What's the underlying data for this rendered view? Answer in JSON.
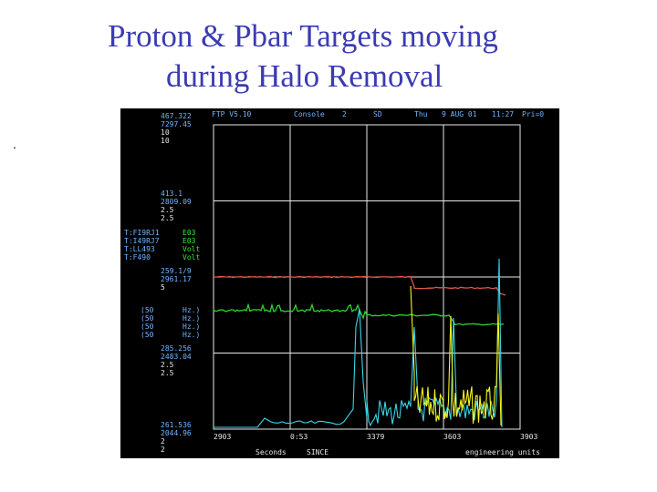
{
  "title": {
    "line1": "Proton & Pbar Targets moving",
    "line2": "during Halo Removal"
  },
  "bullet": ".",
  "scope": {
    "header": {
      "app": "FTP V5.10",
      "mode": "Console",
      "slot": "2",
      "sd": "SD",
      "day": "Thu",
      "date": "9 AUG 01",
      "time": "11:27",
      "pri": "Pri=0"
    },
    "scale_blocks": [
      {
        "top": "467.322",
        "bottom": "7297.45",
        "a": "10",
        "b": "10"
      },
      {
        "top": "413.1",
        "bottom": "2809.09",
        "a": "2.5",
        "b": "2.5"
      },
      {
        "top": "259.1/9",
        "bottom": "2961.17",
        "a": "5",
        "b": ""
      },
      {
        "top": "285.256",
        "bottom": "2483.04",
        "a": "2.5",
        "b": "2.5"
      },
      {
        "top": "261.536",
        "bottom": "2044.96",
        "a": "2",
        "b": "2"
      }
    ],
    "device_names": [
      "T:FI9RJ1",
      "T:I49RJ7",
      "T:LL493",
      "T:F490"
    ],
    "device_units": [
      "E03",
      "E03",
      "Volt",
      "Volt"
    ],
    "rates": [
      {
        "rate": "(50",
        "unit": "Hz.)"
      },
      {
        "rate": "(50",
        "unit": "Hz.)"
      },
      {
        "rate": "(50",
        "unit": "Hz.)"
      },
      {
        "rate": "(50",
        "unit": "Hz.)"
      }
    ],
    "x_ticks": [
      "2903",
      "0:53",
      "3379",
      "3603",
      "3903"
    ],
    "x_label": "Seconds",
    "since": "SINCE",
    "units_label": "engineering units",
    "colors": {
      "red": "#e0564a",
      "green": "#2fd32f",
      "cyan": "#38d6e8",
      "yellow": "#f5f51e",
      "grid": "#e8e8e8"
    }
  }
}
